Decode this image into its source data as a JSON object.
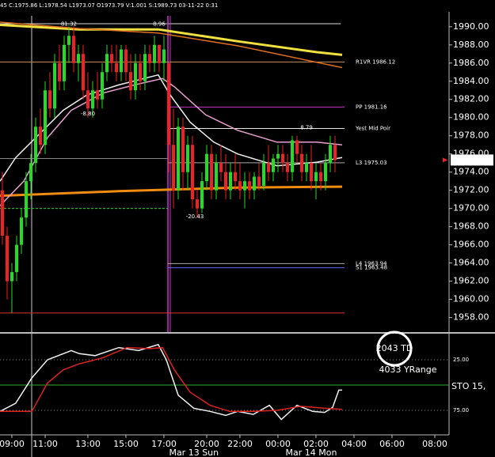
{
  "chart_data": [
    {
      "type": "candlestick",
      "header": "45 C:1975.86 L:1978.54 L1973.07 O1973.79 V:1.001 S:1989.73 03-11-22 0:31",
      "x": [
        0,
        1,
        2,
        3,
        4,
        5,
        6,
        7,
        8,
        9,
        10,
        11,
        12,
        13,
        14,
        15,
        16,
        17,
        18,
        19,
        20,
        21,
        22,
        23,
        24,
        25,
        26,
        27,
        28,
        29,
        30,
        31,
        32,
        33,
        34,
        35,
        36,
        37,
        38,
        39,
        40,
        41,
        42,
        43,
        44,
        45,
        46,
        47,
        48,
        49,
        50,
        51,
        52,
        53,
        54,
        55,
        56,
        57,
        58,
        59,
        60,
        61,
        62,
        63,
        64,
        65,
        66,
        67,
        68,
        69,
        70
      ],
      "open": [
        1972,
        1967,
        1962,
        1963,
        1966,
        1969,
        1973,
        1975,
        1979,
        1977,
        1983,
        1981,
        1986,
        1984,
        1988,
        1989,
        1986,
        1987,
        1983,
        1981,
        1983,
        1982,
        1985,
        1987,
        1986,
        1985,
        1987.5,
        1985,
        1983,
        1986,
        1984,
        1987,
        1986,
        1988,
        1986,
        1986,
        1977,
        1972,
        1979,
        1974,
        1977,
        1971,
        1970,
        1973,
        1976,
        1972,
        1975,
        1974,
        1972,
        1974,
        1973,
        1972,
        1973,
        1972,
        1973.5,
        1972.5,
        1975,
        1974,
        1975.5,
        1976,
        1975,
        1974,
        1977.5,
        1976,
        1974,
        1975,
        1973,
        1974,
        1973,
        1975,
        1977
      ],
      "high": [
        1974,
        1968,
        1964,
        1967,
        1970,
        1974,
        1976,
        1980,
        1981,
        1984,
        1985,
        1987,
        1988,
        1989,
        1990,
        1990,
        1988,
        1988,
        1985,
        1984,
        1985,
        1986,
        1988,
        1988,
        1988,
        1988,
        1988,
        1987,
        1987,
        1987,
        1988,
        1988,
        1989,
        1988,
        1989,
        1986,
        1981,
        1980,
        1980,
        1978,
        1978,
        1972,
        1974,
        1977,
        1977,
        1976,
        1977,
        1976,
        1975,
        1976,
        1975,
        1974,
        1974,
        1974,
        1975,
        1976,
        1977,
        1976,
        1977,
        1977,
        1976,
        1978,
        1978,
        1977,
        1976,
        1977,
        1975,
        1975,
        1976,
        1978,
        1978
      ],
      "low": [
        1966,
        1960,
        1958.5,
        1962,
        1965,
        1968,
        1971,
        1974,
        1976,
        1976,
        1980,
        1980,
        1983,
        1983,
        1986,
        1985,
        1984,
        1982,
        1980,
        1980,
        1981,
        1981,
        1984,
        1985,
        1984,
        1984,
        1984,
        1982,
        1982,
        1983,
        1983,
        1985,
        1985,
        1985,
        1984,
        1974,
        1970,
        1971,
        1972,
        1972,
        1970,
        1969,
        1969.5,
        1972,
        1971,
        1971,
        1973,
        1971,
        1971,
        1972,
        1971,
        1970,
        1971,
        1971,
        1972,
        1972,
        1973,
        1973,
        1974,
        1974,
        1973,
        1973,
        1975,
        1973,
        1973,
        1972,
        1971,
        1972,
        1972,
        1974,
        1974
      ],
      "close": [
        1967,
        1962,
        1963,
        1966,
        1969,
        1973,
        1975,
        1979,
        1977,
        1983,
        1981,
        1986,
        1984,
        1988,
        1989,
        1986,
        1987,
        1983,
        1981,
        1983,
        1982,
        1985,
        1987,
        1986,
        1985,
        1987.5,
        1985,
        1983,
        1986,
        1984,
        1987,
        1986,
        1988,
        1986,
        1987.5,
        1977,
        1972,
        1979,
        1974,
        1977,
        1971,
        1970,
        1973,
        1976,
        1972,
        1975,
        1974,
        1972,
        1974,
        1973,
        1972,
        1973,
        1972,
        1973.5,
        1972.5,
        1975,
        1974,
        1975.5,
        1976,
        1975,
        1974,
        1977.5,
        1976,
        1974,
        1975,
        1973,
        1974,
        1973,
        1975,
        1977,
        1975.33
      ],
      "up_color": "#22dd22",
      "down_color": "#ee2222",
      "xlim": [
        -0.5,
        94
      ],
      "ylim": [
        1956.4,
        1991.2
      ],
      "yticks": [
        {
          "value": 1958,
          "label": "1958.00"
        },
        {
          "value": 1960,
          "label": "1960.00"
        },
        {
          "value": 1962,
          "label": "1962.00"
        },
        {
          "value": 1964,
          "label": "1964.00"
        },
        {
          "value": 1966,
          "label": "1966.00"
        },
        {
          "value": 1968,
          "label": "1968.00"
        },
        {
          "value": 1970,
          "label": "1970.00"
        },
        {
          "value": 1972,
          "label": "1972.00"
        },
        {
          "value": 1974,
          "label": "1974.00"
        },
        {
          "value": 1976,
          "label": "1976.00"
        },
        {
          "value": 1978,
          "label": "1978.00"
        },
        {
          "value": 1980,
          "label": "1980.00"
        },
        {
          "value": 1982,
          "label": "1982.00"
        },
        {
          "value": 1984,
          "label": "1984.00"
        },
        {
          "value": 1986,
          "label": "1986.00"
        },
        {
          "value": 1988,
          "label": "1988.00"
        },
        {
          "value": 1990,
          "label": "1990.00"
        }
      ],
      "xticks": [
        {
          "value": 2,
          "label": "09:00"
        },
        {
          "value": 9,
          "label": "11:00"
        },
        {
          "value": 18,
          "label": "13:00"
        },
        {
          "value": 26,
          "label": "15:00"
        },
        {
          "value": 34,
          "label": "17:00"
        },
        {
          "value": 43,
          "label": "20:00"
        },
        {
          "value": 50,
          "label": "22:00"
        },
        {
          "value": 58,
          "label": "00:00"
        },
        {
          "value": 66,
          "label": "02:00"
        },
        {
          "value": 74,
          "label": "04:00"
        },
        {
          "value": 82,
          "label": "06:00"
        },
        {
          "value": 91,
          "label": "08:00"
        }
      ],
      "date_labels": [
        {
          "value": 40.3,
          "label": "Mar 13 Sun"
        },
        {
          "value": 65,
          "label": "Mar 14 Mon"
        }
      ],
      "last_price": 1975.33,
      "overlays": [
        {
          "color": "#f0e040",
          "width": 3,
          "x": [
            -0.5,
            16.2,
            32.8,
            49.5,
            66.2,
            71.5
          ],
          "values": [
            1990.2,
            1989.7,
            1989.7,
            1988.4,
            1987.2,
            1986.9
          ]
        },
        {
          "color": "#e07020",
          "width": 1.5,
          "x": [
            -0.5,
            16.2,
            32.8,
            49.5,
            71.5
          ],
          "values": [
            1990.5,
            1989.8,
            1989.3,
            1987.9,
            1985.5
          ]
        },
        {
          "color": "#f08c10",
          "width": 3,
          "x": [
            -0.5,
            24.5,
            49.5,
            71.5
          ],
          "values": [
            1971.4,
            1971.9,
            1972.3,
            1972.4
          ]
        },
        {
          "color": "#f0f0f0",
          "width": 1.5,
          "x": [
            -0.5,
            2.8,
            7.8,
            12.8,
            17.8,
            24.5,
            32.8,
            35.3,
            39.5,
            44.5,
            49.5,
            57.8,
            66.2,
            71.5
          ],
          "values": [
            1973,
            1975.6,
            1978.2,
            1980.8,
            1982.5,
            1983.6,
            1984.7,
            1982.5,
            1979.5,
            1977.3,
            1976,
            1974.7,
            1975.1,
            1975.6
          ]
        },
        {
          "color": "#e8a0d0",
          "width": 1.5,
          "x": [
            -0.5,
            4.5,
            9.5,
            14.5,
            21.2,
            27.8,
            33.7,
            36.2,
            42.8,
            49.5,
            57.8,
            66.2,
            71.5
          ],
          "values": [
            1970.3,
            1973,
            1977.8,
            1980.8,
            1982.7,
            1983.6,
            1984.3,
            1983.4,
            1980.3,
            1978.6,
            1977.3,
            1977.3,
            1977
          ]
        }
      ],
      "levels": [
        {
          "label": "R1VR 1986.12",
          "value": 1986.12,
          "color": "#c89060",
          "xrange": [
            -0.5,
            72
          ]
        },
        {
          "label": "PP 1981.16",
          "value": 1981.16,
          "color": "#cc33cc",
          "xrange": [
            34.8,
            72
          ]
        },
        {
          "label": "Yest Mid Poir",
          "value": 1978.8,
          "color": "#e8e8e8",
          "xrange": [
            34.8,
            72
          ]
        },
        {
          "label": "L3 1975.03",
          "value": 1975.03,
          "color": "#aaaaaa",
          "xrange": [
            34.8,
            72
          ]
        },
        {
          "value": 1975.5,
          "color": "#888888",
          "xrange": [
            -0.5,
            34.8
          ]
        },
        {
          "value": 1970,
          "color": "#33cc33",
          "xrange": [
            -0.5,
            34.8
          ],
          "dash": true
        },
        {
          "label": "L4 1963.94",
          "value": 1963.94,
          "color": "#aaaaaa",
          "xrange": [
            34.8,
            72
          ]
        },
        {
          "label": "S1 1963.48",
          "value": 1963.48,
          "color": "#6666ff",
          "xrange": [
            34.8,
            72
          ]
        },
        {
          "value": 1958.5,
          "color": "#dd3333",
          "xrange": [
            -0.5,
            72
          ]
        }
      ],
      "annotations": [
        {
          "text": "81.32",
          "x": 14,
          "y": 1990.3,
          "color": "#33dd33"
        },
        {
          "text": "-8.80",
          "x": 18,
          "y": 1980.4,
          "color": "#ee3333"
        },
        {
          "text": "8.96",
          "x": 33,
          "y": 1990.3,
          "color": "#33dd33"
        },
        {
          "text": "-20.43",
          "x": 40.5,
          "y": 1969.1,
          "color": "#ee3333"
        },
        {
          "text": "8.79",
          "x": 64,
          "y": 1978.9,
          "color": "#33dd33"
        }
      ]
    },
    {
      "type": "line",
      "label": "STO 15,",
      "xlim": [
        -0.5,
        94
      ],
      "ylim": [
        1.6,
        99.2
      ],
      "inverted": true,
      "yticks": [
        {
          "value": 25,
          "label": "25.00"
        },
        {
          "value": 75,
          "label": "75.00"
        }
      ],
      "mid_line": 50,
      "notes": [
        "2043 TD",
        "4033 YRange"
      ],
      "series": [
        {
          "color": "#f0f0f0",
          "x": [
            -0.5,
            2.8,
            6.2,
            9.5,
            14.5,
            16.2,
            19.5,
            24.5,
            28.7,
            32.8,
            34.5,
            37,
            40.3,
            43.7,
            47,
            49.5,
            52.8,
            56.2,
            58.7,
            62,
            65.3,
            67.8,
            69.5,
            70.8,
            71.5
          ],
          "values": [
            76,
            68,
            43,
            25,
            16,
            19,
            21,
            13,
            16,
            10,
            25,
            60,
            73,
            76,
            80,
            76,
            79,
            70,
            84,
            70,
            76,
            77,
            72,
            55,
            55
          ]
        },
        {
          "color": "#dd2222",
          "x": [
            -0.5,
            6.2,
            9.5,
            12.8,
            16.2,
            21.2,
            26.2,
            31.2,
            33.7,
            36.2,
            39.5,
            43.7,
            47.8,
            52.8,
            57.8,
            62.8,
            67.8,
            71.5
          ],
          "values": [
            76,
            76,
            48,
            35,
            29,
            23,
            13,
            14,
            13,
            35,
            57,
            70,
            76,
            76,
            75,
            71,
            73,
            74
          ]
        }
      ]
    }
  ]
}
